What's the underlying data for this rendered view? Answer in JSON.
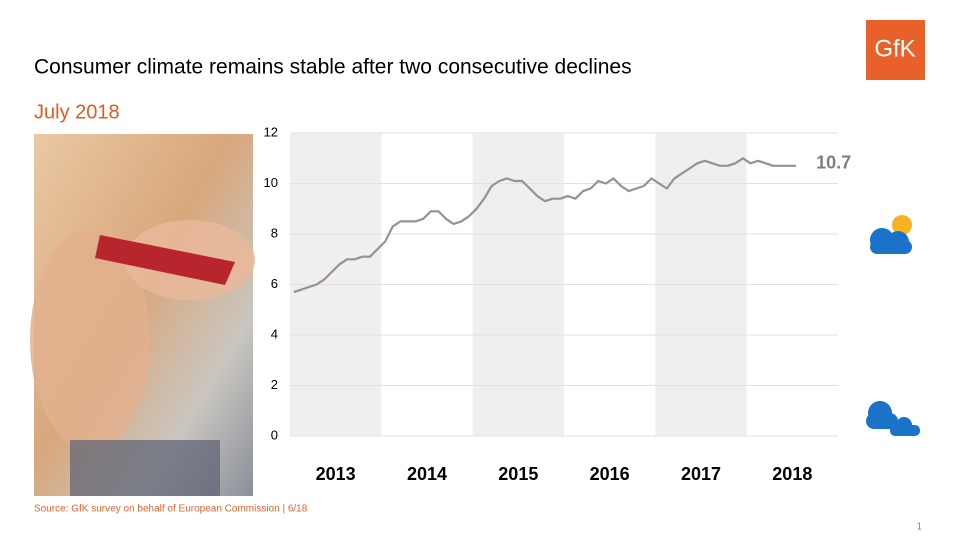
{
  "chart_data": {
    "type": "line",
    "title": "Consumer climate remains stable after two consecutive declines",
    "subtitle": "July 2018",
    "source": "Source: GfK survey on behalf of European Commission  | 6/18",
    "logo": "GfK",
    "page_number": "1",
    "categories": [
      "2013",
      null,
      null,
      null,
      null,
      null,
      null,
      null,
      null,
      null,
      null,
      null,
      "2014",
      null,
      null,
      null,
      null,
      null,
      null,
      null,
      null,
      null,
      null,
      null,
      "2015",
      null,
      null,
      null,
      null,
      null,
      null,
      null,
      null,
      null,
      null,
      null,
      "2016",
      null,
      null,
      null,
      null,
      null,
      null,
      null,
      null,
      null,
      null,
      null,
      "2017",
      null,
      null,
      null,
      null,
      null,
      null,
      null,
      null,
      null,
      null,
      null,
      "2018",
      null,
      null,
      null,
      null,
      null,
      null,
      null,
      null,
      null,
      null,
      null
    ],
    "values": [
      5.7,
      5.8,
      5.9,
      6.0,
      6.2,
      6.5,
      6.8,
      7.0,
      7.0,
      7.1,
      7.1,
      7.4,
      7.7,
      8.3,
      8.5,
      8.5,
      8.5,
      8.6,
      8.9,
      8.9,
      8.6,
      8.4,
      8.5,
      8.7,
      9.0,
      9.4,
      9.9,
      10.1,
      10.2,
      10.1,
      10.1,
      9.8,
      9.5,
      9.3,
      9.4,
      9.4,
      9.5,
      9.4,
      9.7,
      9.8,
      10.1,
      10.0,
      10.2,
      9.9,
      9.7,
      9.8,
      9.9,
      10.2,
      10.0,
      9.8,
      10.2,
      10.4,
      10.6,
      10.8,
      10.9,
      10.8,
      10.7,
      10.7,
      10.8,
      11.0,
      10.8,
      10.9,
      10.8,
      10.7,
      10.7,
      10.7,
      10.7,
      null,
      null,
      null,
      null,
      null
    ],
    "color": "#9b9090",
    "ylim": [
      0,
      12
    ],
    "yticks": [
      0,
      2,
      4,
      6,
      8,
      10,
      12
    ],
    "grid": true
  }
}
